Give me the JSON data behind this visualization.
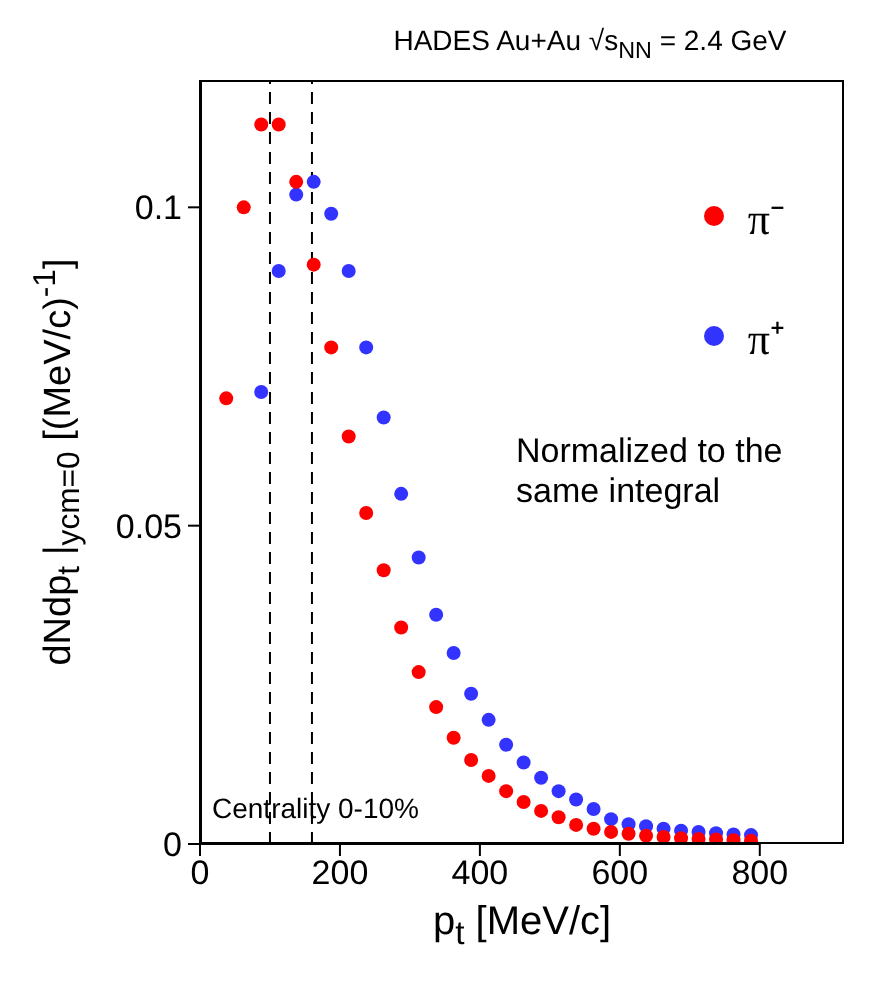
{
  "chart_data": {
    "type": "scatter",
    "title": "HADES  Au+Au  √s$_{NN}$ = 2.4 GeV",
    "xlabel": "p$_{t}$ [MeV/c]",
    "ylabel": "dNdp$_{t}$ |$_{ycm=0}$ [(MeV/c)$^{-1}$]",
    "annotations": [
      "Normalized to the same integral",
      "Centrality 0-10%"
    ],
    "xlim": [
      0,
      800
    ],
    "xticks": [
      0,
      200,
      400,
      600,
      800
    ],
    "ylim": [
      0,
      0.12
    ],
    "yticks": [
      0,
      {
        "value": 0.05,
        "label": "0.05"
      },
      {
        "value": 0.1,
        "label": "0.1"
      }
    ],
    "marker": "circle",
    "legend": "top right",
    "grid": false,
    "ref_lines": [
      {
        "axis": "x",
        "value": 100,
        "line_style": "dashed",
        "color": "#000000"
      },
      {
        "axis": "x",
        "value": 160,
        "line_style": "dashed",
        "color": "#000000"
      }
    ],
    "series": [
      {
        "name": "π⁻",
        "color": "#ff0000",
        "x": [
          37.5,
          62.5,
          87.5,
          112.5,
          137.5,
          162.5,
          187.5,
          212.5,
          237.5,
          262.5,
          287.5,
          312.5,
          337.5,
          362.5,
          387.5,
          412.5,
          437.5,
          462.5,
          487.5,
          512.5,
          537.5,
          562.5,
          587.5,
          612.5,
          637.5,
          662.5,
          687.5,
          712.5,
          737.5,
          762.5,
          787.5
        ],
        "values": [
          0.07,
          0.1,
          0.113,
          0.113,
          0.104,
          0.091,
          0.078,
          0.064,
          0.052,
          0.043,
          0.034,
          0.027,
          0.0215,
          0.0167,
          0.0132,
          0.0107,
          0.0083,
          0.0066,
          0.0052,
          0.0042,
          0.003,
          0.0024,
          0.0019,
          0.0016,
          0.0013,
          0.0011,
          0.0009,
          0.0008,
          0.0007,
          0.0006,
          0.0005
        ]
      },
      {
        "name": "π⁺",
        "color": "#3333ff",
        "x": [
          87.5,
          112.5,
          137.5,
          162.5,
          187.5,
          212.5,
          237.5,
          262.5,
          287.5,
          312.5,
          337.5,
          362.5,
          387.5,
          412.5,
          437.5,
          462.5,
          487.5,
          512.5,
          537.5,
          562.5,
          587.5,
          612.5,
          637.5,
          662.5,
          687.5,
          712.5,
          737.5,
          762.5,
          787.5
        ],
        "values": [
          0.071,
          0.09,
          0.102,
          0.104,
          0.099,
          0.09,
          0.078,
          0.067,
          0.055,
          0.045,
          0.036,
          0.03,
          0.0236,
          0.0195,
          0.0156,
          0.0128,
          0.0104,
          0.0083,
          0.007,
          0.0055,
          0.0039,
          0.0031,
          0.0028,
          0.0024,
          0.0021,
          0.0019,
          0.0017,
          0.0015,
          0.0014
        ]
      }
    ]
  }
}
